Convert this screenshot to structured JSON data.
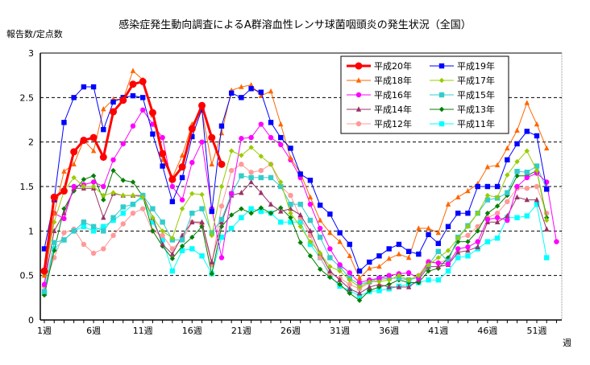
{
  "chart_data": {
    "type": "line",
    "title": "感染症発生動向調査によるA群溶血性レンサ球菌咽頭炎の発生状況（全国）",
    "ylabel": "報告数/定点数",
    "xlabel": "週",
    "ylim": [
      0,
      3
    ],
    "yticks": [
      "0",
      "0.5",
      "1",
      "1.5",
      "2",
      "2.5",
      "3"
    ],
    "xticks": [
      {
        "week": 1,
        "label": "1週"
      },
      {
        "week": 6,
        "label": "6週"
      },
      {
        "week": 11,
        "label": "11週"
      },
      {
        "week": 16,
        "label": "16週"
      },
      {
        "week": 21,
        "label": "21週"
      },
      {
        "week": 26,
        "label": "26週"
      },
      {
        "week": 31,
        "label": "31週"
      },
      {
        "week": 36,
        "label": "36週"
      },
      {
        "week": 41,
        "label": "41週"
      },
      {
        "week": 46,
        "label": "46週"
      },
      {
        "week": 51,
        "label": "51週"
      }
    ],
    "grid": "horizontal dashed",
    "legend_position": "top-right",
    "series": [
      {
        "name": "平成20年",
        "color": "#FF0000",
        "marker": "circle",
        "width": 3,
        "values": [
          0.55,
          1.38,
          1.45,
          1.89,
          2.02,
          2.05,
          1.83,
          2.34,
          2.47,
          2.65,
          2.68,
          2.33,
          1.87,
          1.58,
          1.72,
          2.15,
          2.41,
          2.05,
          1.75
        ]
      },
      {
        "name": "平成19年",
        "color": "#0000FF",
        "marker": "square",
        "width": 1,
        "values": [
          0.8,
          1.35,
          2.22,
          2.5,
          2.62,
          2.62,
          2.14,
          2.45,
          2.5,
          2.52,
          2.5,
          2.09,
          1.73,
          1.33,
          1.6,
          2.06,
          2.37,
          1.22,
          2.18,
          2.55,
          2.5,
          2.6,
          2.56,
          2.22,
          2.05,
          1.93,
          1.64,
          1.57,
          1.29,
          1.19,
          0.98,
          0.85,
          0.55,
          0.65,
          0.72,
          0.8,
          0.85,
          0.77,
          0.74,
          0.96,
          0.86,
          1.05,
          1.2,
          1.2,
          1.5,
          1.5,
          1.5,
          1.8,
          1.98,
          2.12,
          2.07,
          1.47
        ]
      },
      {
        "name": "平成18年",
        "color": "#FF6600",
        "marker": "triangle",
        "width": 1,
        "values": [
          0.5,
          1.2,
          1.67,
          1.75,
          2.02,
          1.9,
          2.37,
          2.48,
          2.48,
          2.8,
          2.7,
          2.3,
          1.8,
          1.6,
          1.85,
          2.2,
          2.35,
          1.75,
          2.1,
          2.58,
          2.62,
          2.64,
          2.52,
          2.57,
          2.2,
          1.82,
          1.65,
          1.38,
          1.12,
          0.98,
          0.88,
          0.72,
          0.47,
          0.58,
          0.6,
          0.69,
          0.74,
          0.7,
          1.03,
          1.03,
          0.98,
          1.3,
          1.38,
          1.45,
          1.53,
          1.72,
          1.74,
          1.93,
          2.13,
          2.44,
          2.2,
          1.93
        ]
      },
      {
        "name": "平成17年",
        "color": "#99CC00",
        "marker": "diamond",
        "width": 1,
        "values": [
          0.5,
          1.1,
          1.45,
          1.6,
          1.5,
          1.5,
          1.4,
          1.43,
          1.4,
          1.4,
          1.38,
          1.15,
          1.0,
          0.92,
          1.25,
          1.42,
          1.41,
          0.95,
          1.5,
          1.9,
          1.85,
          1.94,
          1.84,
          1.75,
          1.55,
          1.2,
          1.05,
          0.88,
          0.75,
          0.6,
          0.55,
          0.45,
          0.37,
          0.43,
          0.43,
          0.45,
          0.5,
          0.45,
          0.5,
          0.62,
          0.7,
          0.78,
          0.92,
          1.05,
          1.2,
          1.4,
          1.38,
          1.63,
          1.78,
          1.9,
          1.68,
          1.12
        ]
      },
      {
        "name": "平成16年",
        "color": "#FF00FF",
        "marker": "circle",
        "width": 1,
        "values": [
          0.4,
          1.2,
          1.14,
          1.5,
          1.52,
          1.55,
          1.5,
          1.8,
          1.98,
          2.18,
          2.36,
          2.2,
          2.05,
          1.5,
          1.35,
          1.77,
          2.0,
          1.25,
          0.7,
          1.42,
          2.04,
          2.05,
          2.2,
          2.05,
          1.97,
          1.8,
          1.6,
          1.3,
          1.03,
          0.8,
          0.62,
          0.53,
          0.42,
          0.45,
          0.47,
          0.5,
          0.52,
          0.53,
          0.47,
          0.65,
          0.64,
          0.63,
          0.8,
          0.82,
          0.88,
          1.13,
          1.15,
          1.12,
          1.5,
          1.6,
          1.65,
          1.55,
          0.88
        ]
      },
      {
        "name": "平成15年",
        "color": "#33CCCC",
        "marker": "square",
        "width": 1,
        "values": [
          0.32,
          0.87,
          0.9,
          1.0,
          1.1,
          1.05,
          1.0,
          1.15,
          1.27,
          1.3,
          1.4,
          1.25,
          1.1,
          0.9,
          0.9,
          1.2,
          1.25,
          0.98,
          1.13,
          1.42,
          1.62,
          1.6,
          1.6,
          1.6,
          1.5,
          1.3,
          1.3,
          1.12,
          0.93,
          0.7,
          0.6,
          0.47,
          0.4,
          0.43,
          0.47,
          0.47,
          0.47,
          0.45,
          0.48,
          0.62,
          0.77,
          0.66,
          0.93,
          1.06,
          1.2,
          1.35,
          1.37,
          1.43,
          1.67,
          1.66,
          1.73,
          1.47
        ]
      },
      {
        "name": "平成14年",
        "color": "#993366",
        "marker": "triangle",
        "width": 1,
        "values": [
          0.4,
          1.0,
          1.2,
          1.48,
          1.48,
          1.48,
          1.15,
          1.42,
          1.4,
          1.4,
          1.4,
          1.15,
          0.85,
          0.74,
          0.95,
          1.1,
          1.1,
          0.65,
          1.1,
          1.4,
          1.43,
          1.55,
          1.43,
          1.3,
          1.22,
          1.25,
          1.18,
          1.0,
          0.75,
          0.55,
          0.45,
          0.35,
          0.3,
          0.37,
          0.4,
          0.37,
          0.37,
          0.37,
          0.45,
          0.6,
          0.6,
          0.62,
          0.76,
          0.78,
          0.82,
          1.1,
          1.1,
          1.17,
          1.38,
          1.35,
          1.35,
          1.02
        ]
      },
      {
        "name": "平成13年",
        "color": "#008000",
        "marker": "diamond",
        "width": 1,
        "values": [
          0.28,
          0.78,
          1.25,
          1.45,
          1.58,
          1.62,
          1.35,
          1.68,
          1.57,
          1.55,
          1.39,
          1.0,
          0.83,
          0.69,
          0.83,
          0.93,
          1.05,
          0.52,
          1.05,
          1.18,
          1.25,
          1.2,
          1.26,
          1.2,
          1.26,
          1.15,
          0.87,
          0.72,
          0.57,
          0.48,
          0.4,
          0.3,
          0.22,
          0.33,
          0.37,
          0.4,
          0.45,
          0.42,
          0.42,
          0.55,
          0.58,
          0.7,
          0.88,
          0.88,
          1.0,
          1.2,
          1.28,
          1.4,
          1.62,
          1.62,
          1.68,
          1.15
        ]
      },
      {
        "name": "平成12年",
        "color": "#FF9999",
        "marker": "circle",
        "width": 1,
        "values": [
          0.38,
          0.7,
          0.98,
          1.02,
          0.85,
          0.75,
          0.8,
          0.95,
          1.08,
          1.2,
          1.25,
          1.0,
          0.95,
          0.8,
          0.9,
          1.1,
          1.08,
          0.62,
          1.28,
          1.68,
          1.75,
          1.66,
          1.68,
          1.75,
          1.5,
          1.4,
          1.15,
          0.95,
          0.7,
          0.52,
          0.47,
          0.4,
          0.35,
          0.42,
          0.45,
          0.47,
          0.47,
          0.45,
          0.5,
          0.66,
          0.64,
          0.68,
          0.92,
          0.95,
          1.05,
          1.15,
          1.2,
          1.33,
          1.48,
          1.48,
          1.5,
          1.2
        ]
      },
      {
        "name": "平成11年",
        "color": "#00FFFF",
        "marker": "square",
        "width": 1,
        "values": [
          0.3,
          0.8,
          0.9,
          1.0,
          1.05,
          1.0,
          1.05,
          1.12,
          1.2,
          1.3,
          1.38,
          1.1,
          0.9,
          0.55,
          0.78,
          0.8,
          0.72,
          0.52,
          0.93,
          1.03,
          1.15,
          1.25,
          1.22,
          1.2,
          1.1,
          1.1,
          1.1,
          0.85,
          0.7,
          0.5,
          0.38,
          0.33,
          0.27,
          0.32,
          0.33,
          0.35,
          0.38,
          0.4,
          0.42,
          0.45,
          0.45,
          0.55,
          0.7,
          0.72,
          0.8,
          0.88,
          0.92,
          1.15,
          1.15,
          1.17,
          1.3,
          0.7
        ]
      }
    ]
  }
}
